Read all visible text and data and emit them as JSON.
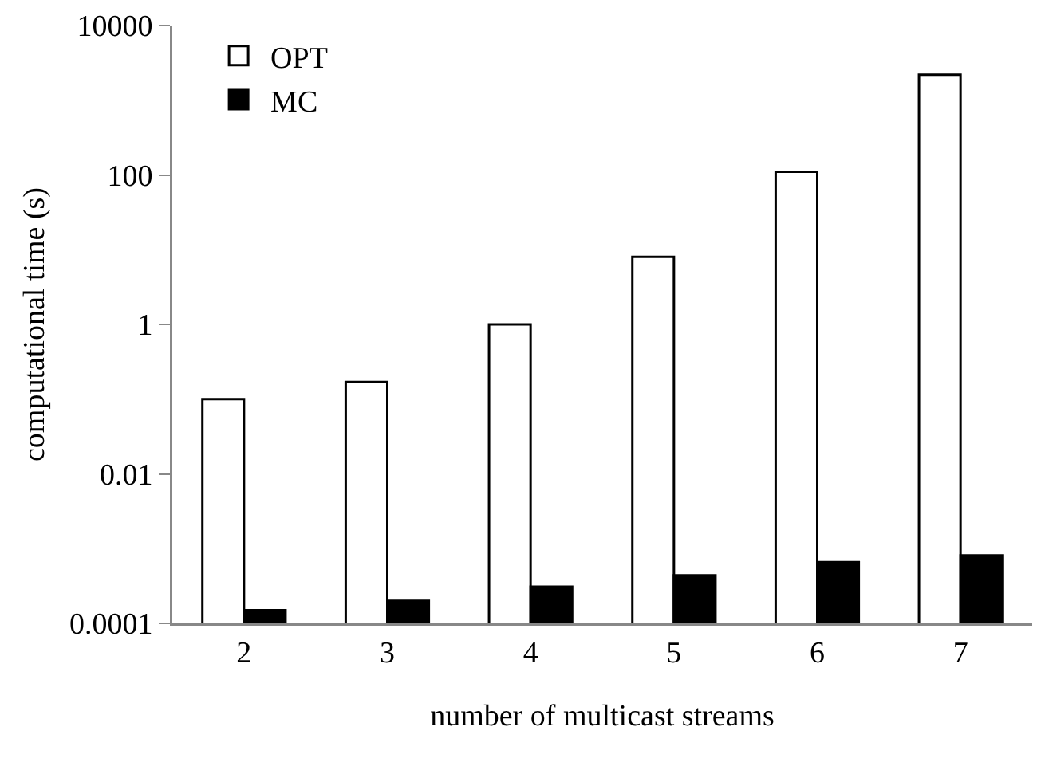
{
  "chart_data": {
    "type": "bar",
    "xlabel": "number of multicast streams",
    "ylabel": "computational time (s)",
    "categories": [
      "2",
      "3",
      "4",
      "5",
      "6",
      "7"
    ],
    "series": [
      {
        "name": "OPT",
        "color": "#ffffff",
        "values": [
          0.1,
          0.17,
          1,
          8,
          110,
          2200
        ]
      },
      {
        "name": "MC",
        "color": "#000000",
        "values": [
          0.00015,
          0.0002,
          0.00031,
          0.00044,
          0.00066,
          0.00081
        ]
      }
    ],
    "log": "y",
    "ylim": [
      0.0001,
      10000
    ],
    "yticks": [
      {
        "value": 0.0001,
        "label": "0.0001"
      },
      {
        "value": 0.01,
        "label": "0.01"
      },
      1,
      100,
      10000
    ],
    "grid": false,
    "legend": "top left"
  }
}
